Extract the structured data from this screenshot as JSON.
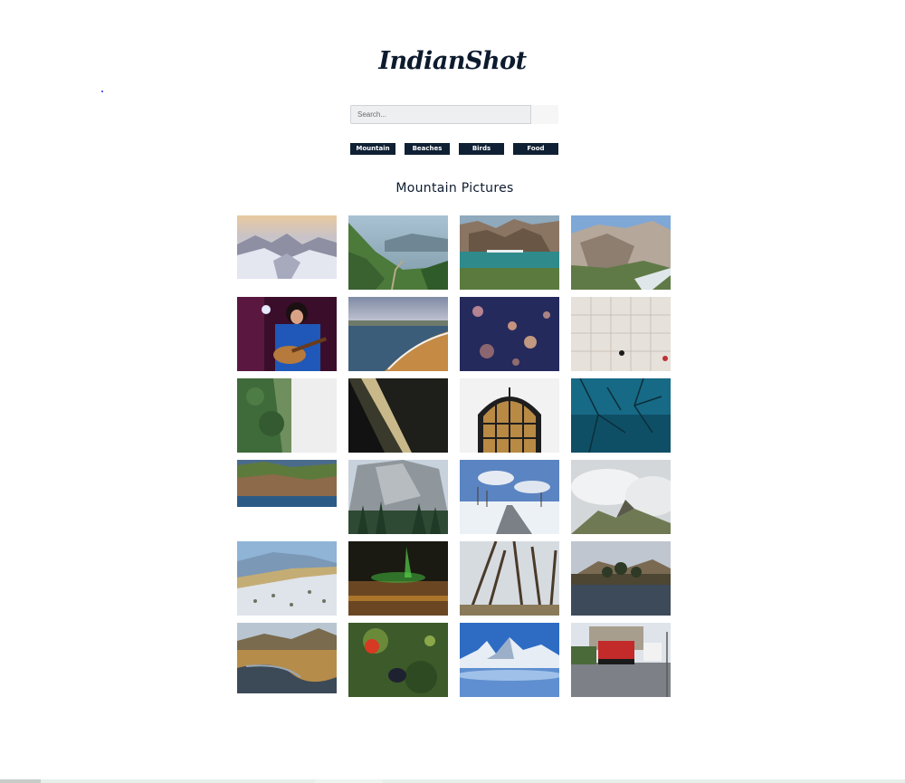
{
  "header": {
    "logo_text": "IndianShot"
  },
  "search": {
    "placeholder": "Search...",
    "value": ""
  },
  "categories": [
    {
      "label": "Mountain"
    },
    {
      "label": "Beaches"
    },
    {
      "label": "Birds"
    },
    {
      "label": "Food"
    }
  ],
  "main": {
    "title": "Mountain Pictures"
  },
  "photos": [
    {
      "subject": "snowy mountain valley at sunset"
    },
    {
      "subject": "green hillside trail"
    },
    {
      "subject": "glacier lake with cliffs"
    },
    {
      "subject": "rocky mountain ridge"
    },
    {
      "subject": "singer with guitar on stage"
    },
    {
      "subject": "beach shoreline waves"
    },
    {
      "subject": "floating lights bokeh"
    },
    {
      "subject": "tiled floor from above"
    },
    {
      "subject": "tall tree against white sky"
    },
    {
      "subject": "dark abstract architecture"
    },
    {
      "subject": "arched window"
    },
    {
      "subject": "tree branches over teal water"
    },
    {
      "subject": "coastal village"
    },
    {
      "subject": "granite cliff with forest"
    },
    {
      "subject": "snowy road with trees"
    },
    {
      "subject": "clouds over mountain peak"
    },
    {
      "subject": "snowy hillside with blue sky"
    },
    {
      "subject": "green light in night sky"
    },
    {
      "subject": "bare trees in forest"
    },
    {
      "subject": "lake with island trees"
    },
    {
      "subject": "river through grassland"
    },
    {
      "subject": "bird among red flowers"
    },
    {
      "subject": "snow peaks above clouds"
    },
    {
      "subject": "trucks on road"
    }
  ]
}
